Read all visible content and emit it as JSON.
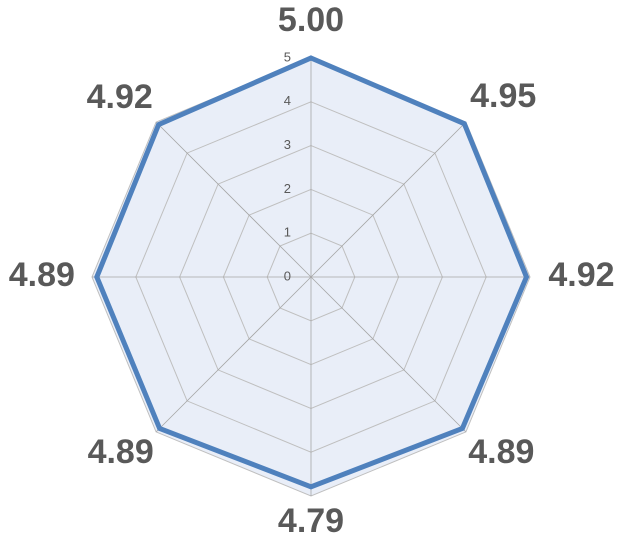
{
  "chart_data": {
    "type": "radar",
    "categories": [
      null,
      null,
      null,
      null,
      null,
      null,
      null,
      null
    ],
    "series": [
      {
        "name": null,
        "color": "#4f81bd",
        "values": [
          5.0,
          4.95,
          4.92,
          4.89,
          4.79,
          4.89,
          4.89,
          4.92
        ],
        "value_labels": [
          "5.00",
          "4.95",
          "4.92",
          "4.89",
          "4.79",
          "4.89",
          "4.89",
          "4.92"
        ]
      }
    ],
    "rlim": [
      0,
      5
    ],
    "rticks": [
      0,
      1,
      2,
      3,
      4,
      5
    ],
    "grid": true,
    "plot_background": "#e9eef8"
  }
}
